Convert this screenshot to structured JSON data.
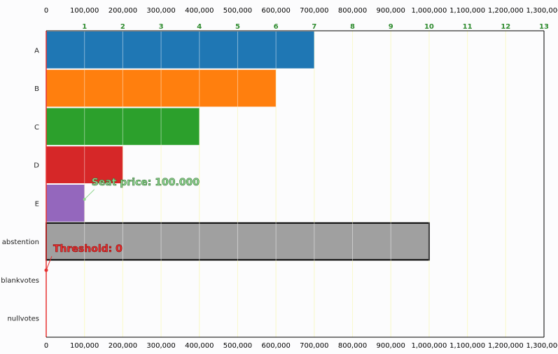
{
  "chart_data": {
    "type": "bar",
    "orientation": "horizontal",
    "categories": [
      "A",
      "B",
      "C",
      "D",
      "E",
      "abstention",
      "blankvotes",
      "nullvotes"
    ],
    "values": [
      700000,
      600000,
      400000,
      200000,
      100000,
      1000000,
      0,
      0
    ],
    "colors": [
      "#1f77b4",
      "#ff7f0e",
      "#2ca02c",
      "#d62728",
      "#9467bd",
      "#a0a0a0",
      "#a0a0a0",
      "#a0a0a0"
    ],
    "xlim": [
      0,
      1300000
    ],
    "x_ticks": [
      "0",
      "100,000",
      "200,000",
      "300,000",
      "400,000",
      "500,000",
      "600,000",
      "700,000",
      "800,000",
      "900,000",
      "1,000,000",
      "1,100,000",
      "1,200,000",
      "1,300,000"
    ],
    "seat_ticks": [
      "1",
      "2",
      "3",
      "4",
      "5",
      "6",
      "7",
      "8",
      "9",
      "10",
      "11",
      "12",
      "13"
    ],
    "seat_price": 100000,
    "threshold": 0,
    "annotations": {
      "seat_price_label": "Seat price: 100.000",
      "threshold_label": "Threshold: 0"
    },
    "grid": true,
    "theme_colors": {
      "gridline": "#f5f5a8",
      "seat_tick_text": "#2e8b2e",
      "threshold_line": "#e63232"
    }
  }
}
